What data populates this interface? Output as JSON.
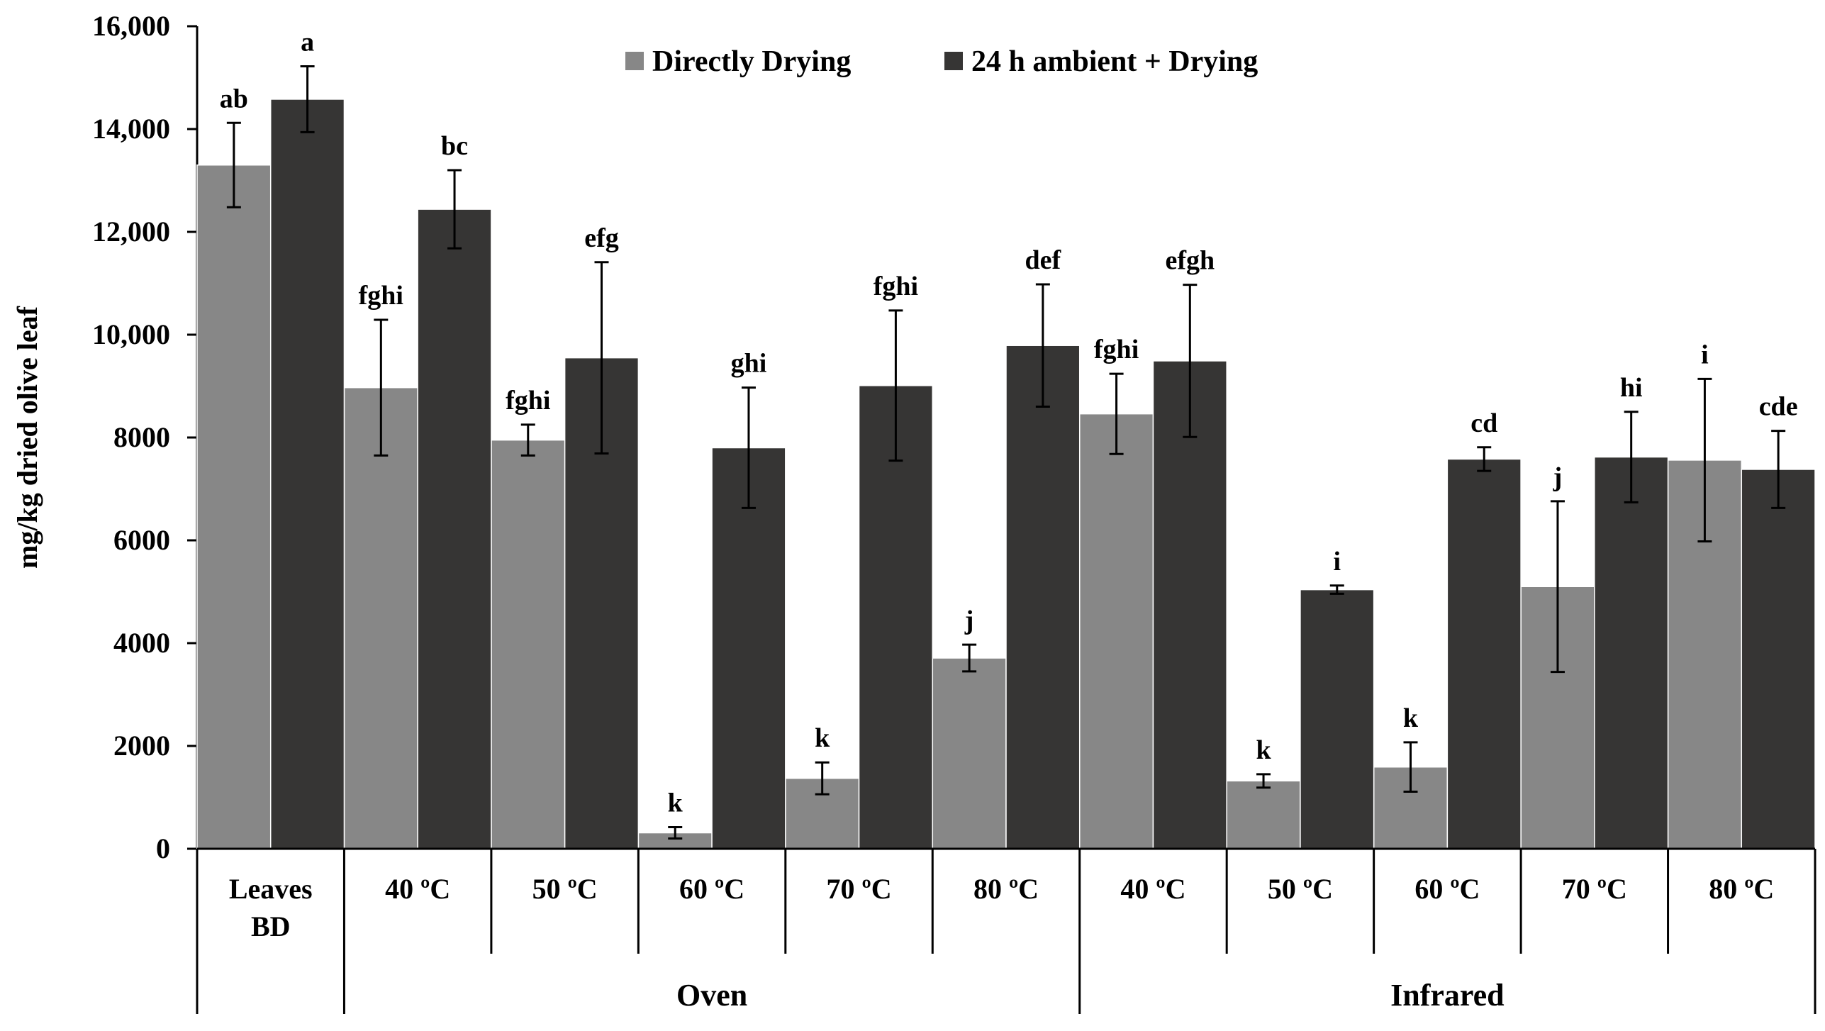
{
  "chart_data": {
    "type": "bar",
    "title": "",
    "ylabel": "mg/kg dried olive leaf",
    "ylim": [
      0,
      16000
    ],
    "yticks": [
      {
        "value": 0,
        "label": "0"
      },
      {
        "value": 2000,
        "label": "2000"
      },
      {
        "value": 4000,
        "label": "4000"
      },
      {
        "value": 6000,
        "label": "6000"
      },
      {
        "value": 8000,
        "label": "8000"
      },
      {
        "value": 10000,
        "label": "10,000"
      },
      {
        "value": 12000,
        "label": "12,000"
      },
      {
        "value": 14000,
        "label": "14,000"
      },
      {
        "value": 16000,
        "label": "16,000"
      }
    ],
    "categories": [
      [
        "Leaves",
        "BD"
      ],
      [
        "40 ºC"
      ],
      [
        "50 ºC"
      ],
      [
        "60 ºC"
      ],
      [
        "70 ºC"
      ],
      [
        "80 ºC"
      ],
      [
        "40 ºC"
      ],
      [
        "50 ºC"
      ],
      [
        "60 ºC"
      ],
      [
        "70 ºC"
      ],
      [
        "80 ºC"
      ]
    ],
    "groups": [
      {
        "label": "Oven",
        "start": 1,
        "end": 5
      },
      {
        "label": "Infrared",
        "start": 6,
        "end": 10
      }
    ],
    "legend": {
      "position": "top-center"
    },
    "series": [
      {
        "name": "Directly Drying",
        "color": "#878787",
        "values": [
          13300,
          8970,
          7950,
          310,
          1370,
          3710,
          8460,
          1320,
          1590,
          5100,
          7560
        ],
        "errors": [
          820,
          1320,
          300,
          110,
          310,
          260,
          780,
          130,
          480,
          1660,
          1580
        ],
        "labels": [
          "ab",
          "fghi",
          "fghi",
          "k",
          "k",
          "j",
          "fghi",
          "k",
          "k",
          "j",
          "i"
        ]
      },
      {
        "name": "24 h ambient + Drying",
        "color": "#363534",
        "values": [
          14580,
          12440,
          9550,
          7800,
          9010,
          9790,
          9490,
          5040,
          7580,
          7620,
          7380
        ],
        "errors": [
          640,
          760,
          1860,
          1170,
          1460,
          1190,
          1480,
          80,
          230,
          880,
          750
        ],
        "labels": [
          "a",
          "bc",
          "efg",
          "ghi",
          "fghi",
          "def",
          "efgh",
          "i",
          "cd",
          "hi",
          "cde"
        ]
      }
    ]
  }
}
